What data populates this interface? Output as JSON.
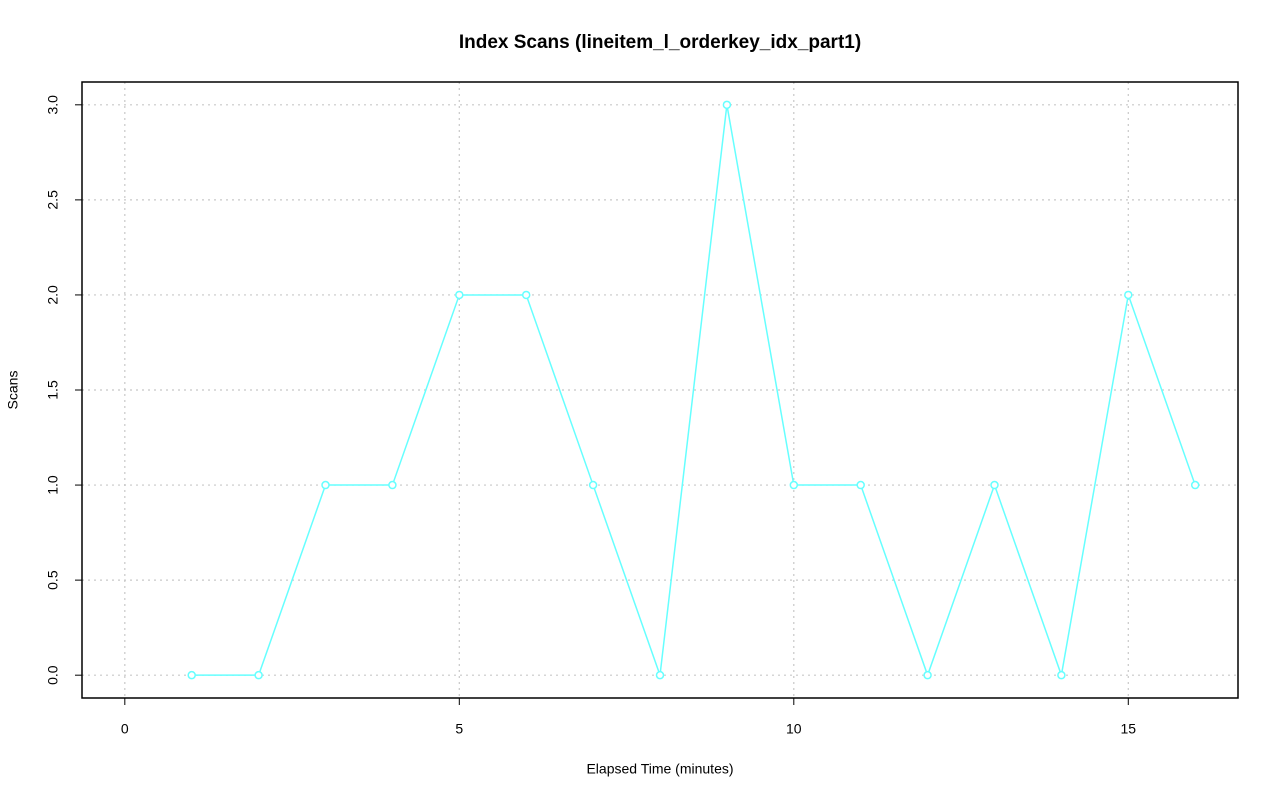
{
  "chart_data": {
    "type": "line",
    "title": "Index Scans (lineitem_l_orderkey_idx_part1)",
    "x_label": "Elapsed Time (minutes)",
    "y_label": "Scans",
    "x": [
      1,
      2,
      3,
      4,
      5,
      6,
      7,
      8,
      9,
      10,
      11,
      12,
      13,
      14,
      15,
      16
    ],
    "series": [
      {
        "name": "lineitem_l_orderkey_idx_part1",
        "color": "#66ffff",
        "values": [
          0,
          0,
          1,
          1,
          2,
          2,
          1,
          0,
          3,
          1,
          1,
          0,
          1,
          0,
          2,
          1
        ]
      }
    ],
    "xlim": [
      -0.64,
      16.64
    ],
    "ylim": [
      -0.12,
      3.12
    ],
    "xticks": [
      0,
      5,
      10,
      15
    ],
    "yticks": [
      {
        "value": 0,
        "label": "0.0"
      },
      0.5,
      {
        "value": 1,
        "label": "1.0"
      },
      1.5,
      {
        "value": 2,
        "label": "2.0"
      },
      2.5,
      {
        "value": 3,
        "label": "3.0"
      }
    ],
    "grid": true
  }
}
